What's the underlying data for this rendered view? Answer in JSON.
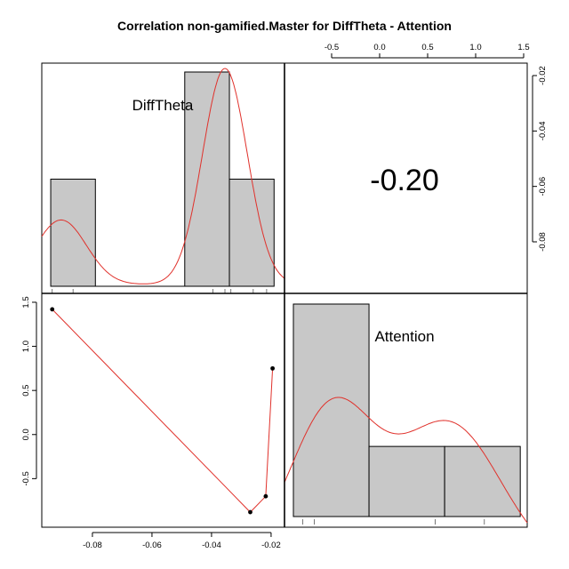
{
  "chart_data": {
    "type": "scatter",
    "title": "Correlation non-gamified.Master for DiffTheta - Attention",
    "variables": [
      "DiffTheta",
      "Attention"
    ],
    "correlation": {
      "label": "-0.20",
      "value": -0.2
    },
    "points": [
      {
        "x": -0.0935,
        "y": 1.42
      },
      {
        "x": -0.027,
        "y": -0.88
      },
      {
        "x": -0.0218,
        "y": -0.7
      },
      {
        "x": -0.0195,
        "y": 0.75
      }
    ],
    "diffTheta_range": [
      -0.097,
      -0.0155
    ],
    "attention_range": [
      -0.95,
      1.52
    ],
    "bottom_axis": {
      "ticks": [
        -0.08,
        -0.06,
        -0.04,
        -0.02
      ],
      "labels": [
        "-0.08",
        "-0.06",
        "-0.04",
        "-0.02"
      ]
    },
    "left_axis": {
      "ticks": [
        1.5,
        1.0,
        0.5,
        0.0,
        -0.5
      ],
      "labels": [
        "1.5",
        "1.0",
        "0.5",
        "0.0",
        "-0.5"
      ]
    },
    "top_axis": {
      "ticks": [
        -0.5,
        0.0,
        0.5,
        1.0,
        1.5
      ],
      "labels": [
        "-0.5",
        "0.0",
        "0.5",
        "1.0",
        "1.5"
      ]
    },
    "right_axis": {
      "ticks": [
        -0.02,
        -0.04,
        -0.06,
        -0.08
      ],
      "labels": [
        "-0.02",
        "-0.04",
        "-0.06",
        "-0.08"
      ]
    },
    "diffTheta_hist": {
      "bins": [
        {
          "from": -0.094,
          "to": -0.079,
          "density": 0.5
        },
        {
          "from": -0.079,
          "to": -0.049,
          "density": 0.0
        },
        {
          "from": -0.049,
          "to": -0.034,
          "density": 1.0
        },
        {
          "from": -0.034,
          "to": -0.019,
          "density": 0.5
        }
      ],
      "rug": [
        -0.0935,
        -0.0865,
        -0.0395,
        -0.0355,
        -0.0335,
        -0.026,
        -0.0215
      ]
    },
    "attention_hist": {
      "bins": [
        {
          "from": -0.9,
          "to": -0.1,
          "density": 1.0
        },
        {
          "from": -0.1,
          "to": 0.7,
          "density": 0.33
        },
        {
          "from": 0.7,
          "to": 1.5,
          "density": 0.33
        }
      ],
      "rug": [
        -0.8,
        -0.68,
        0.6,
        1.12
      ]
    },
    "grid": false,
    "legend": "none"
  }
}
